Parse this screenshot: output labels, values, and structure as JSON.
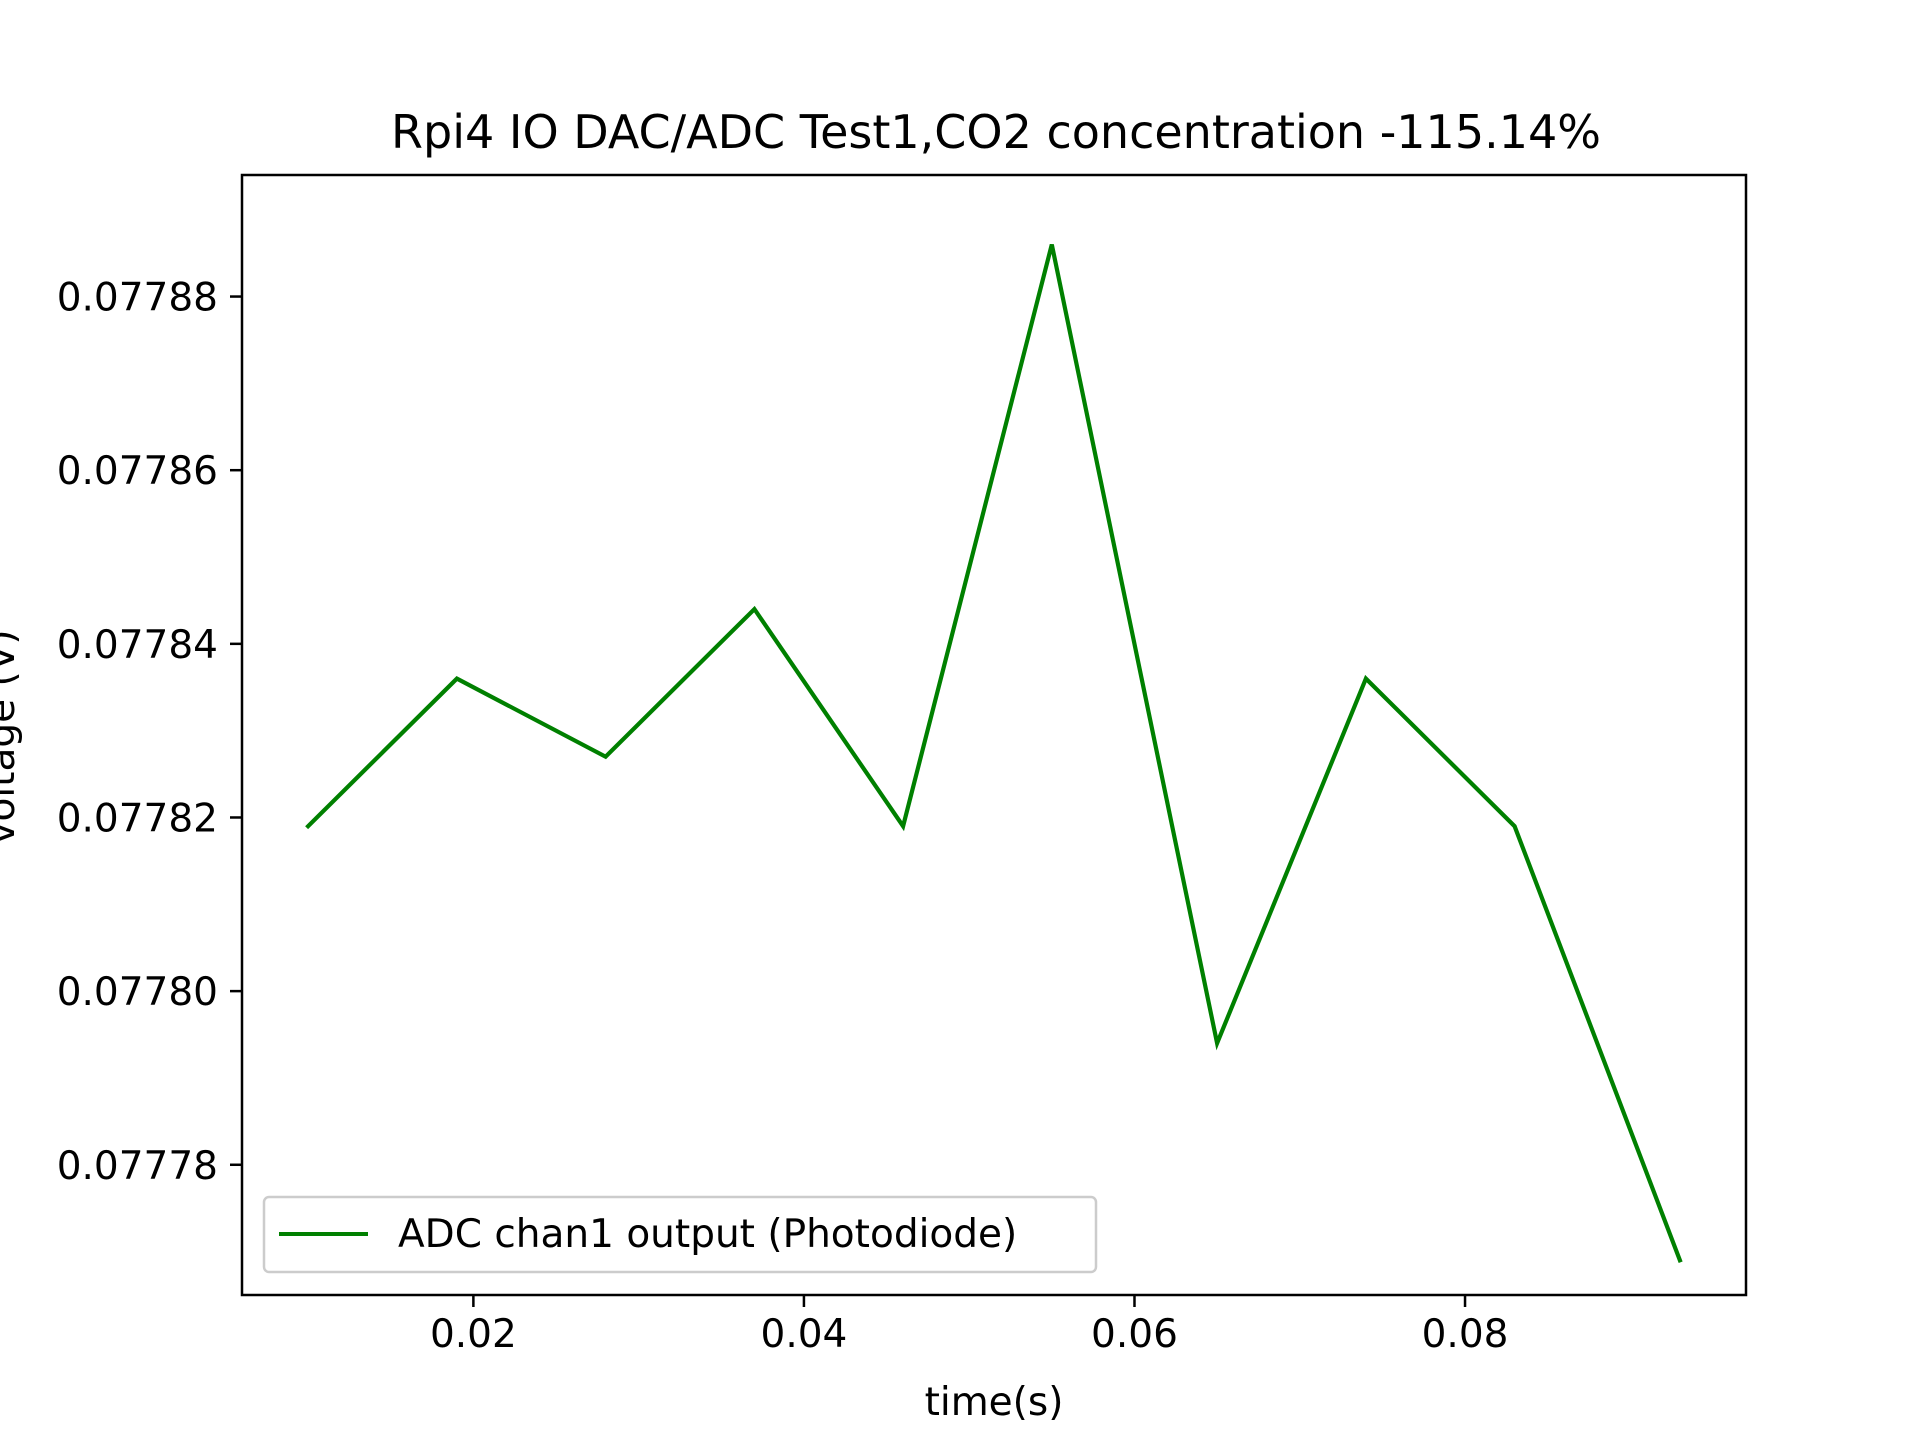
{
  "chart_data": {
    "type": "line",
    "title": "Rpi4 IO DAC/ADC Test1,CO2 concentration -115.14%",
    "xlabel": "time(s)",
    "ylabel": "voltage (V)",
    "xlim": [
      0.006,
      0.097
    ],
    "ylim": [
      0.077765,
      0.077894
    ],
    "x_ticks": [
      0.02,
      0.04,
      0.06,
      0.08
    ],
    "x_tick_labels": [
      "0.02",
      "0.04",
      "0.06",
      "0.08"
    ],
    "y_ticks": [
      0.07778,
      0.0778,
      0.07782,
      0.07784,
      0.07786,
      0.07788
    ],
    "y_tick_labels": [
      "0.07778",
      "0.07780",
      "0.07782",
      "0.07784",
      "0.07786",
      "0.07788"
    ],
    "grid": false,
    "legend_position": "lower-left",
    "series": [
      {
        "name": "ADC chan1 output  (Photodiode)",
        "color": "#008000",
        "x": [
          0.01,
          0.019,
          0.028,
          0.037,
          0.046,
          0.055,
          0.065,
          0.074,
          0.083,
          0.093
        ],
        "y": [
          0.077819,
          0.077836,
          0.077827,
          0.077844,
          0.077819,
          0.077886,
          0.077794,
          0.077836,
          0.077819,
          0.077769
        ]
      }
    ]
  }
}
